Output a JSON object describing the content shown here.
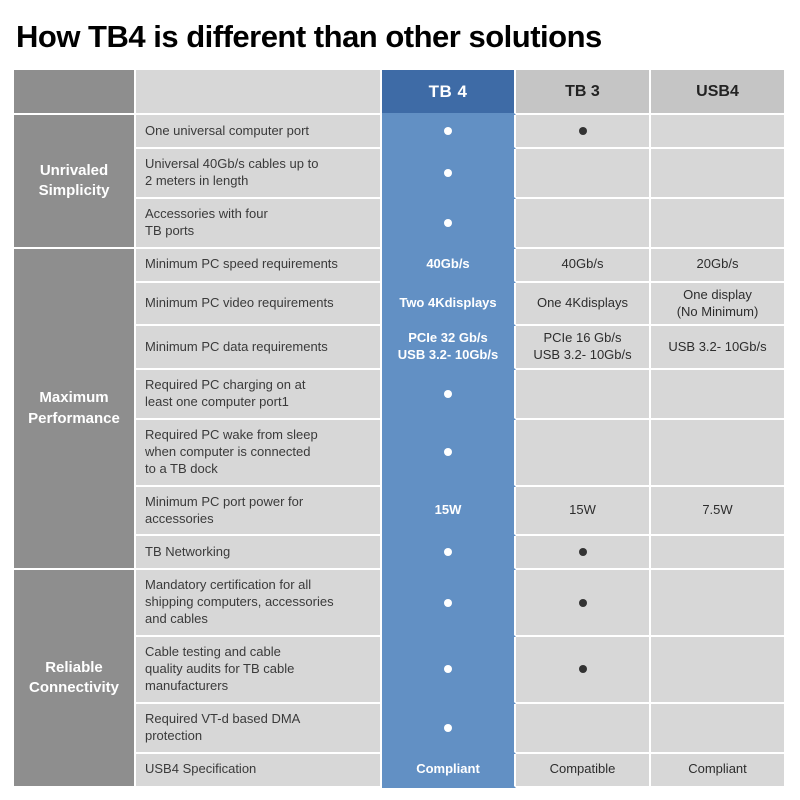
{
  "title": "How TB4 is different than other solutions",
  "chart_data": {
    "type": "table",
    "title": "How TB4 is different than other solutions",
    "columns": [
      "TB 4",
      "TB 3",
      "USB4"
    ],
    "dot_meaning": "feature supported",
    "groups": [
      {
        "category": "Unrivaled\nSimplicity",
        "rows": [
          {
            "feature": "One universal computer port",
            "values": [
              "dot",
              "dot",
              ""
            ]
          },
          {
            "feature": "Universal 40Gb/s cables up to\n2 meters in length",
            "values": [
              "dot",
              "",
              ""
            ]
          },
          {
            "feature": "Accessories with four\nTB ports",
            "values": [
              "dot",
              "",
              ""
            ]
          }
        ]
      },
      {
        "category": "Maximum\nPerformance",
        "rows": [
          {
            "feature": "Minimum PC speed requirements",
            "values": [
              "40Gb/s",
              "40Gb/s",
              "20Gb/s"
            ]
          },
          {
            "feature": "Minimum PC video requirements",
            "values": [
              "Two 4Kdisplays",
              "One 4Kdisplays",
              "One display\n(No Minimum)"
            ]
          },
          {
            "feature": "Minimum PC data requirements",
            "values": [
              "PCIe 32 Gb/s\nUSB 3.2- 10Gb/s",
              "PCIe 16 Gb/s\nUSB 3.2- 10Gb/s",
              "USB 3.2- 10Gb/s"
            ]
          },
          {
            "feature": "Required PC charging on at\nleast one computer port1",
            "values": [
              "dot",
              "",
              ""
            ]
          },
          {
            "feature": "Required PC wake from sleep\nwhen computer is connected\nto a TB dock",
            "values": [
              "dot",
              "",
              ""
            ]
          },
          {
            "feature": "Minimum PC port power for\naccessories",
            "values": [
              "15W",
              "15W",
              "7.5W"
            ]
          },
          {
            "feature": "TB Networking",
            "values": [
              "dot",
              "dot",
              ""
            ]
          }
        ]
      },
      {
        "category": "Reliable\nConnectivity",
        "rows": [
          {
            "feature": "Mandatory certification for all\nshipping computers, accessories\nand cables",
            "values": [
              "dot",
              "dot",
              ""
            ]
          },
          {
            "feature": "Cable testing and cable\nquality audits for TB cable\nmanufacturers",
            "values": [
              "dot",
              "dot",
              ""
            ]
          },
          {
            "feature": "Required VT-d based DMA\nprotection",
            "values": [
              "dot",
              "",
              ""
            ]
          },
          {
            "feature": "USB4 Specification",
            "values": [
              "Compliant",
              "Compatible",
              "Compliant"
            ]
          }
        ]
      }
    ]
  },
  "colors": {
    "tb4_header": "#3E6BA6",
    "tb4_body": "#6290C4",
    "category_bg": "#8E8E8E",
    "cell_bg": "#D7D7D7",
    "header_bg": "#C5C5C5",
    "dot_dark": "#333333",
    "dot_light": "#FFFFFF"
  }
}
